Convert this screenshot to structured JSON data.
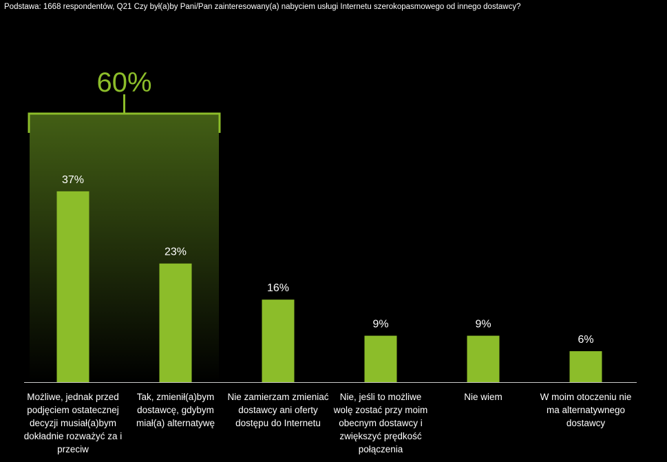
{
  "subtitle": "Podstawa: 1668 respondentów, Q21 Czy był(a)by Pani/Pan zainteresowany(a) nabyciem usługi Internetu szerokopasmowego od innego dostawcy?",
  "chart_data": {
    "type": "bar",
    "title": "",
    "xlabel": "",
    "ylabel": "",
    "ylim": [
      0,
      70
    ],
    "grid": false,
    "categories": [
      "Możliwe, jednak przed podjęciem ostatecznej decyzji musiał(a)bym dokładnie rozważyć za i przeciw",
      "Tak, zmienił(a)bym dostawcę, gdybym miał(a) alternatywę",
      "Nie zamierzam zmieniać dostawcy ani oferty dostępu do Internetu",
      "Nie, jeśli to możliwe wolę zostać przy moim obecnym dostawcy i zwiększyć prędkość połączenia",
      "Nie wiem",
      "W moim otoczeniu nie ma alternatywnego dostawcy"
    ],
    "values": [
      37,
      23,
      16,
      9,
      9,
      6
    ],
    "data_labels": [
      "37%",
      "23%",
      "16%",
      "9%",
      "9%",
      "6%"
    ],
    "annotation": {
      "label": "60%",
      "spans_categories": [
        0,
        1
      ]
    },
    "colors": {
      "bar": "#8cbd2a",
      "highlight_top": "#435f15",
      "background": "#000000",
      "label_text": "#ffffff",
      "axis": "#cccccc"
    }
  }
}
